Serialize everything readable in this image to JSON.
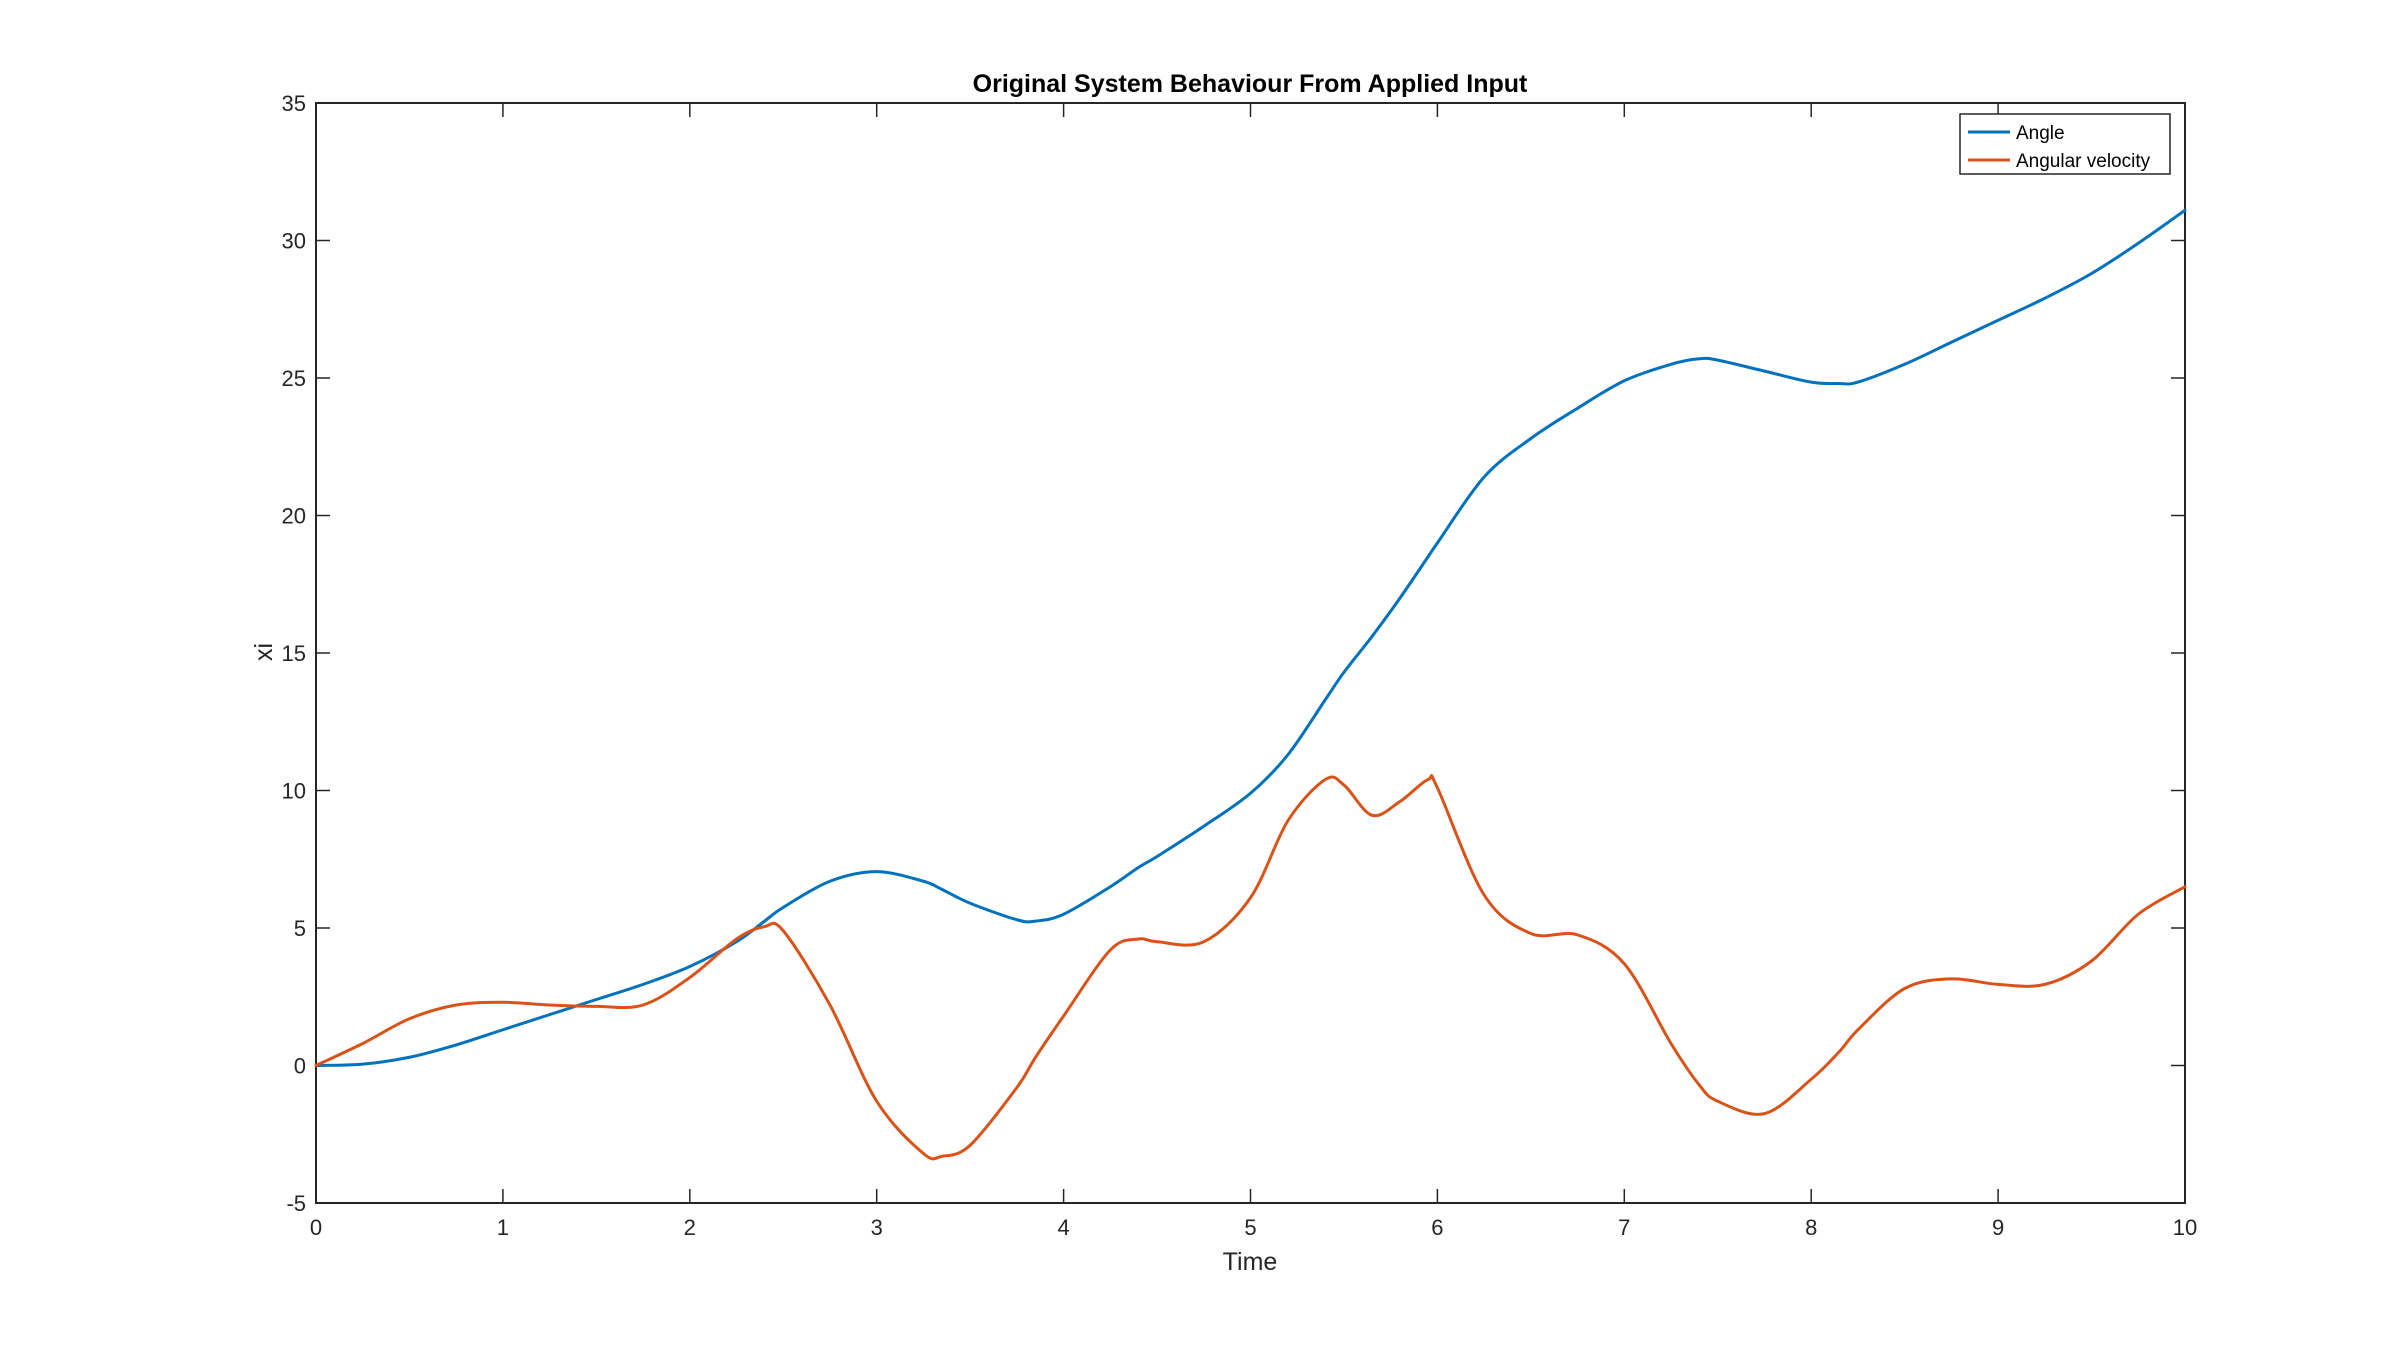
{
  "chart_data": {
    "type": "line",
    "title": "Original System Behaviour From Applied Input",
    "xlabel": "Time",
    "ylabel": "xi",
    "xlim": [
      0,
      10
    ],
    "ylim": [
      -5,
      35
    ],
    "xticks": [
      "0",
      "1",
      "2",
      "3",
      "4",
      "5",
      "6",
      "7",
      "8",
      "9",
      "10"
    ],
    "yticks": [
      "-5",
      "0",
      "5",
      "10",
      "15",
      "20",
      "25",
      "30",
      "35"
    ],
    "grid": false,
    "legend": "top-right",
    "x": [
      0,
      0.25,
      0.5,
      0.75,
      1,
      1.25,
      1.5,
      1.75,
      2,
      2.25,
      2.4,
      2.5,
      2.75,
      3,
      3.25,
      3.35,
      3.5,
      3.75,
      3.85,
      4,
      4.25,
      4.4,
      4.5,
      4.75,
      5,
      5.2,
      5.4,
      5.5,
      5.65,
      5.8,
      5.95,
      6,
      6.25,
      6.5,
      6.75,
      7,
      7.25,
      7.4,
      7.5,
      7.75,
      8,
      8.15,
      8.25,
      8.5,
      8.75,
      9,
      9.25,
      9.5,
      9.75,
      10
    ],
    "series": [
      {
        "name": "Angle",
        "color": "#0072BD",
        "values": [
          0,
          0.05,
          0.3,
          0.75,
          1.3,
          1.85,
          2.4,
          2.95,
          3.6,
          4.5,
          5.25,
          5.75,
          6.7,
          7.05,
          6.7,
          6.4,
          5.9,
          5.3,
          5.25,
          5.5,
          6.5,
          7.2,
          7.6,
          8.7,
          9.9,
          11.3,
          13.3,
          14.3,
          15.6,
          17.0,
          18.5,
          19.0,
          21.4,
          22.8,
          23.9,
          24.9,
          25.5,
          25.7,
          25.65,
          25.25,
          24.85,
          24.8,
          24.85,
          25.5,
          26.3,
          27.1,
          27.9,
          28.8,
          29.9,
          31.1
        ]
      },
      {
        "name": "Angular velocity",
        "color": "#D95319",
        "values": [
          0,
          0.8,
          1.7,
          2.2,
          2.3,
          2.2,
          2.15,
          2.2,
          3.2,
          4.6,
          5.05,
          4.9,
          2.2,
          -1.3,
          -3.2,
          -3.3,
          -2.9,
          -0.8,
          0.3,
          1.8,
          4.2,
          4.6,
          4.5,
          4.5,
          6.1,
          8.9,
          10.4,
          10.2,
          9.1,
          9.6,
          10.4,
          10.1,
          6.2,
          4.8,
          4.75,
          3.7,
          0.8,
          -0.7,
          -1.3,
          -1.75,
          -0.5,
          0.5,
          1.3,
          2.8,
          3.15,
          2.95,
          2.95,
          3.8,
          5.5,
          6.5
        ]
      }
    ]
  }
}
